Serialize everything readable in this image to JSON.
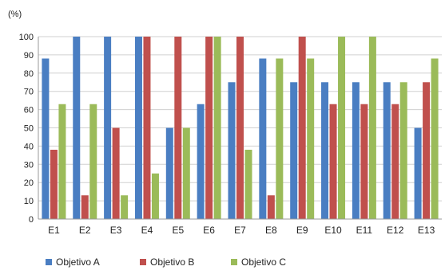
{
  "chart_data": {
    "type": "bar",
    "ylabel": "(%)",
    "ylim": [
      0,
      100
    ],
    "yticks": [
      0,
      10,
      20,
      30,
      40,
      50,
      60,
      70,
      80,
      90,
      100
    ],
    "categories": [
      "E1",
      "E2",
      "E3",
      "E4",
      "E5",
      "E6",
      "E7",
      "E8",
      "E9",
      "E10",
      "E11",
      "E12",
      "E13"
    ],
    "series": [
      {
        "name": "Objetivo A",
        "color": "#4a7ec2",
        "values": [
          88,
          100,
          100,
          100,
          50,
          63,
          75,
          88,
          75,
          75,
          75,
          75,
          50
        ]
      },
      {
        "name": "Objetivo B",
        "color": "#c0504d",
        "values": [
          38,
          13,
          50,
          100,
          100,
          100,
          100,
          13,
          100,
          63,
          63,
          63,
          75
        ]
      },
      {
        "name": "Objetivo C",
        "color": "#9bbb59",
        "values": [
          63,
          63,
          13,
          25,
          50,
          100,
          38,
          88,
          88,
          100,
          100,
          75,
          88
        ]
      }
    ],
    "grid": true,
    "legend_position": "bottom-left"
  }
}
